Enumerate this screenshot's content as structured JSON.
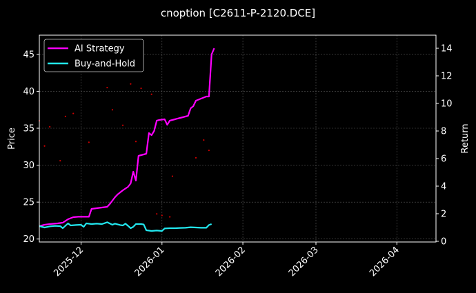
{
  "chart_data": {
    "type": "line",
    "title": "cnoption [C2611-P-2120.DCE]",
    "ylabel_left": "Price",
    "ylabel_right": "Return",
    "x_ticks": [
      "2025-12",
      "2026-01",
      "2026-02",
      "2026-03",
      "2026-04"
    ],
    "x_range": [
      "2025-11-15",
      "2026-04-16"
    ],
    "y_left_ticks": [
      20,
      25,
      30,
      35,
      40,
      45
    ],
    "y_left_range": [
      19.6,
      47.6
    ],
    "y_right_ticks": [
      0,
      2,
      4,
      6,
      8,
      10,
      12,
      14
    ],
    "y_right_range": [
      -0.05,
      14.95
    ],
    "grid": true,
    "legend_position": "top-left",
    "series": [
      {
        "name": "AI Strategy",
        "color": "#ff00ff",
        "axis": "right",
        "points": [
          [
            "2025-11-15",
            1.1
          ],
          [
            "2025-11-17",
            1.2
          ],
          [
            "2025-11-19",
            1.25
          ],
          [
            "2025-11-22",
            1.3
          ],
          [
            "2025-11-24",
            1.35
          ],
          [
            "2025-11-26",
            1.6
          ],
          [
            "2025-11-28",
            1.75
          ],
          [
            "2025-11-30",
            1.78
          ],
          [
            "2025-12-02",
            1.78
          ],
          [
            "2025-12-04",
            1.78
          ],
          [
            "2025-12-05",
            2.35
          ],
          [
            "2025-12-07",
            2.4
          ],
          [
            "2025-12-09",
            2.45
          ],
          [
            "2025-12-11",
            2.5
          ],
          [
            "2025-12-12",
            2.7
          ],
          [
            "2025-12-13",
            2.95
          ],
          [
            "2025-12-14",
            3.2
          ],
          [
            "2025-12-15",
            3.4
          ],
          [
            "2025-12-17",
            3.7
          ],
          [
            "2025-12-19",
            3.95
          ],
          [
            "2025-12-20",
            4.2
          ],
          [
            "2025-12-21",
            5.05
          ],
          [
            "2025-12-22",
            4.4
          ],
          [
            "2025-12-23",
            6.2
          ],
          [
            "2025-12-25",
            6.3
          ],
          [
            "2025-12-26",
            6.35
          ],
          [
            "2025-12-27",
            7.85
          ],
          [
            "2025-12-28",
            7.7
          ],
          [
            "2025-12-29",
            8.0
          ],
          [
            "2025-12-30",
            8.75
          ],
          [
            "2025-12-31",
            8.8
          ],
          [
            "2026-01-02",
            8.85
          ],
          [
            "2026-01-03",
            8.45
          ],
          [
            "2026-01-04",
            8.75
          ],
          [
            "2026-01-06",
            8.85
          ],
          [
            "2026-01-08",
            8.95
          ],
          [
            "2026-01-10",
            9.05
          ],
          [
            "2026-01-11",
            9.1
          ],
          [
            "2026-01-12",
            9.65
          ],
          [
            "2026-01-13",
            9.8
          ],
          [
            "2026-01-14",
            10.2
          ],
          [
            "2026-01-16",
            10.35
          ],
          [
            "2026-01-18",
            10.5
          ],
          [
            "2026-01-19",
            10.5
          ],
          [
            "2026-01-20",
            13.55
          ],
          [
            "2026-01-21",
            14.0
          ]
        ]
      },
      {
        "name": "Buy-and-Hold",
        "color": "#22e8f0",
        "axis": "right",
        "points": [
          [
            "2025-11-15",
            1.1
          ],
          [
            "2025-11-17",
            1.0
          ],
          [
            "2025-11-19",
            1.08
          ],
          [
            "2025-11-21",
            1.12
          ],
          [
            "2025-11-23",
            1.1
          ],
          [
            "2025-11-24",
            0.95
          ],
          [
            "2025-11-26",
            1.3
          ],
          [
            "2025-11-27",
            1.15
          ],
          [
            "2025-11-29",
            1.18
          ],
          [
            "2025-12-01",
            1.2
          ],
          [
            "2025-12-02",
            1.05
          ],
          [
            "2025-12-03",
            1.3
          ],
          [
            "2025-12-05",
            1.25
          ],
          [
            "2025-12-07",
            1.28
          ],
          [
            "2025-12-09",
            1.25
          ],
          [
            "2025-12-11",
            1.38
          ],
          [
            "2025-12-13",
            1.2
          ],
          [
            "2025-12-14",
            1.28
          ],
          [
            "2025-12-16",
            1.18
          ],
          [
            "2025-12-17",
            1.15
          ],
          [
            "2025-12-18",
            1.28
          ],
          [
            "2025-12-19",
            1.12
          ],
          [
            "2025-12-20",
            0.95
          ],
          [
            "2025-12-21",
            1.05
          ],
          [
            "2025-12-22",
            1.25
          ],
          [
            "2025-12-24",
            1.25
          ],
          [
            "2025-12-25",
            1.22
          ],
          [
            "2025-12-26",
            0.8
          ],
          [
            "2025-12-28",
            0.75
          ],
          [
            "2025-12-30",
            0.78
          ],
          [
            "2026-01-01",
            0.75
          ],
          [
            "2026-01-02",
            0.93
          ],
          [
            "2026-01-04",
            0.95
          ],
          [
            "2026-01-06",
            0.95
          ],
          [
            "2026-01-08",
            0.97
          ],
          [
            "2026-01-10",
            0.98
          ],
          [
            "2026-01-12",
            1.02
          ],
          [
            "2026-01-14",
            1.0
          ],
          [
            "2026-01-16",
            0.98
          ],
          [
            "2026-01-18",
            0.98
          ],
          [
            "2026-01-19",
            1.18
          ],
          [
            "2026-01-20",
            1.25
          ]
        ]
      }
    ],
    "scatter": {
      "color": "#cc0000",
      "axis": "left",
      "points": [
        [
          "2025-11-15",
          36.0
        ],
        [
          "2025-11-17",
          32.6
        ],
        [
          "2025-11-19",
          35.2
        ],
        [
          "2025-11-23",
          30.6
        ],
        [
          "2025-11-25",
          36.6
        ],
        [
          "2025-11-28",
          37.0
        ],
        [
          "2025-12-04",
          33.1
        ],
        [
          "2025-12-11",
          40.5
        ],
        [
          "2025-12-13",
          37.5
        ],
        [
          "2025-12-17",
          35.4
        ],
        [
          "2025-12-20",
          41.0
        ],
        [
          "2025-12-22",
          33.2
        ],
        [
          "2025-12-24",
          40.4
        ],
        [
          "2025-12-28",
          39.6
        ],
        [
          "2025-12-30",
          23.4
        ],
        [
          "2026-01-01",
          23.2
        ],
        [
          "2026-01-04",
          23.0
        ],
        [
          "2026-01-05",
          28.5
        ],
        [
          "2026-01-14",
          31.0
        ],
        [
          "2026-01-17",
          33.4
        ],
        [
          "2026-01-19",
          32.0
        ]
      ]
    }
  }
}
